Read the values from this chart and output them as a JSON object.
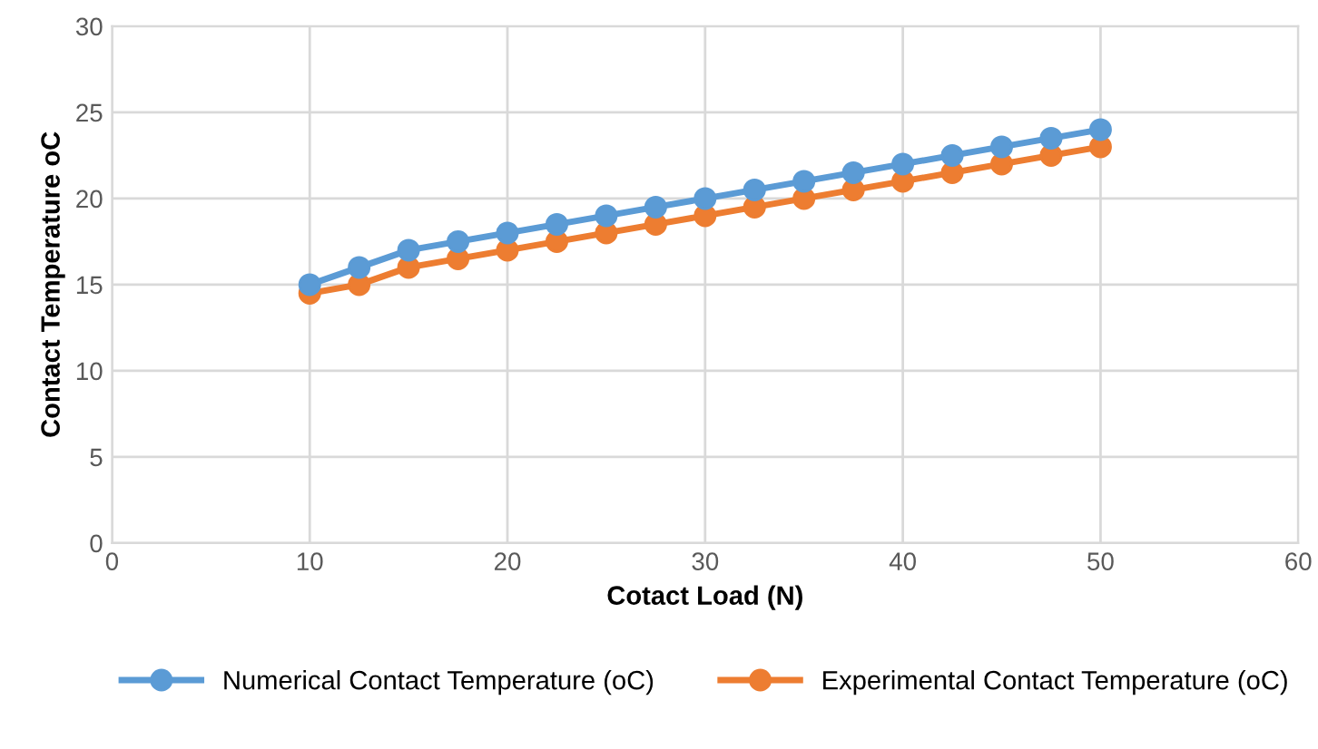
{
  "chart_data": {
    "type": "line",
    "xlabel": "Cotact Load (N)",
    "ylabel": "Contact Temperature oC",
    "x": [
      10,
      12.5,
      15,
      17.5,
      20,
      22.5,
      25,
      27.5,
      30,
      32.5,
      35,
      37.5,
      40,
      42.5,
      45,
      47.5,
      50
    ],
    "series": [
      {
        "name": "Numerical Contact Temperature (oC)",
        "color": "#5b9bd5",
        "values": [
          15,
          16,
          17,
          17.5,
          18,
          18.5,
          19,
          19.5,
          20,
          20.5,
          21,
          21.5,
          22,
          22.5,
          23,
          23.5,
          24
        ]
      },
      {
        "name": "Experimental Contact Temperature (oC)",
        "color": "#ed7d31",
        "values": [
          14.5,
          15,
          16,
          16.5,
          17,
          17.5,
          18,
          18.5,
          19,
          19.5,
          20,
          20.5,
          21,
          21.5,
          22,
          22.5,
          23
        ]
      }
    ],
    "xlim": [
      0,
      60
    ],
    "xticks": [
      0,
      10,
      20,
      30,
      40,
      50,
      60
    ],
    "ylim": [
      0,
      30
    ],
    "yticks": [
      0,
      5,
      10,
      15,
      20,
      25,
      30
    ],
    "grid": true,
    "legend": "bottom",
    "marker": "circle",
    "line_style": "solid"
  }
}
